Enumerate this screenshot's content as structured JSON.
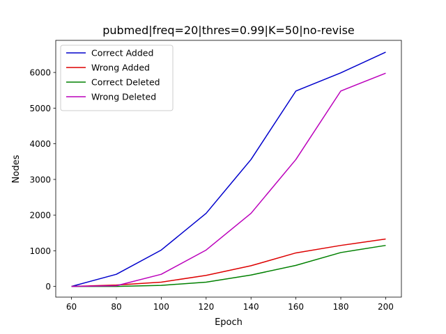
{
  "chart_data": {
    "type": "line",
    "title": "pubmed|freq=20|thres=0.99|K=50|no-revise",
    "xlabel": "Epoch",
    "ylabel": "Nodes",
    "x": [
      60,
      80,
      100,
      120,
      140,
      160,
      180,
      200
    ],
    "xlim": [
      53,
      207
    ],
    "ylim": [
      -300,
      6900
    ],
    "xticks": [
      60,
      80,
      100,
      120,
      140,
      160,
      180,
      200
    ],
    "yticks": [
      0,
      1000,
      2000,
      3000,
      4000,
      5000,
      6000
    ],
    "grid": false,
    "legend_position": "upper-left",
    "series": [
      {
        "name": "Correct Added",
        "color": "#0000cc",
        "values": [
          0,
          340,
          1020,
          2050,
          3560,
          5480,
          5990,
          6570
        ]
      },
      {
        "name": "Wrong Added",
        "color": "#dd0000",
        "values": [
          0,
          40,
          120,
          310,
          580,
          940,
          1150,
          1330
        ]
      },
      {
        "name": "Correct Deleted",
        "color": "#008000",
        "values": [
          0,
          0,
          30,
          120,
          320,
          590,
          950,
          1150
        ]
      },
      {
        "name": "Wrong Deleted",
        "color": "#bb00bb",
        "values": [
          0,
          20,
          340,
          1020,
          2050,
          3560,
          5480,
          5980
        ]
      }
    ]
  }
}
